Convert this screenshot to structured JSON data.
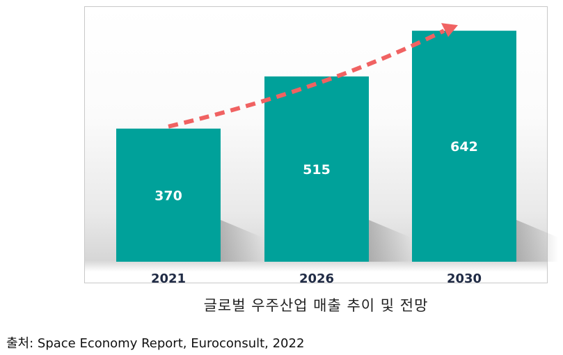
{
  "caption": "글로벌 우주산업 매출 추이 및 전망",
  "source": "출처: Space Economy Report, Euroconsult, 2022",
  "colors": {
    "bar": "#00A19A",
    "trend_arrow": "#F06262",
    "bar_label": "#ffffff",
    "tick_label": "#1f2a44"
  },
  "chart_data": {
    "type": "bar",
    "categories": [
      "2021",
      "2026",
      "2030"
    ],
    "values": [
      370,
      515,
      642
    ],
    "ylim": [
      0,
      710
    ],
    "grid": false,
    "legend": "none",
    "annotations": [
      "trend-arrow"
    ]
  }
}
